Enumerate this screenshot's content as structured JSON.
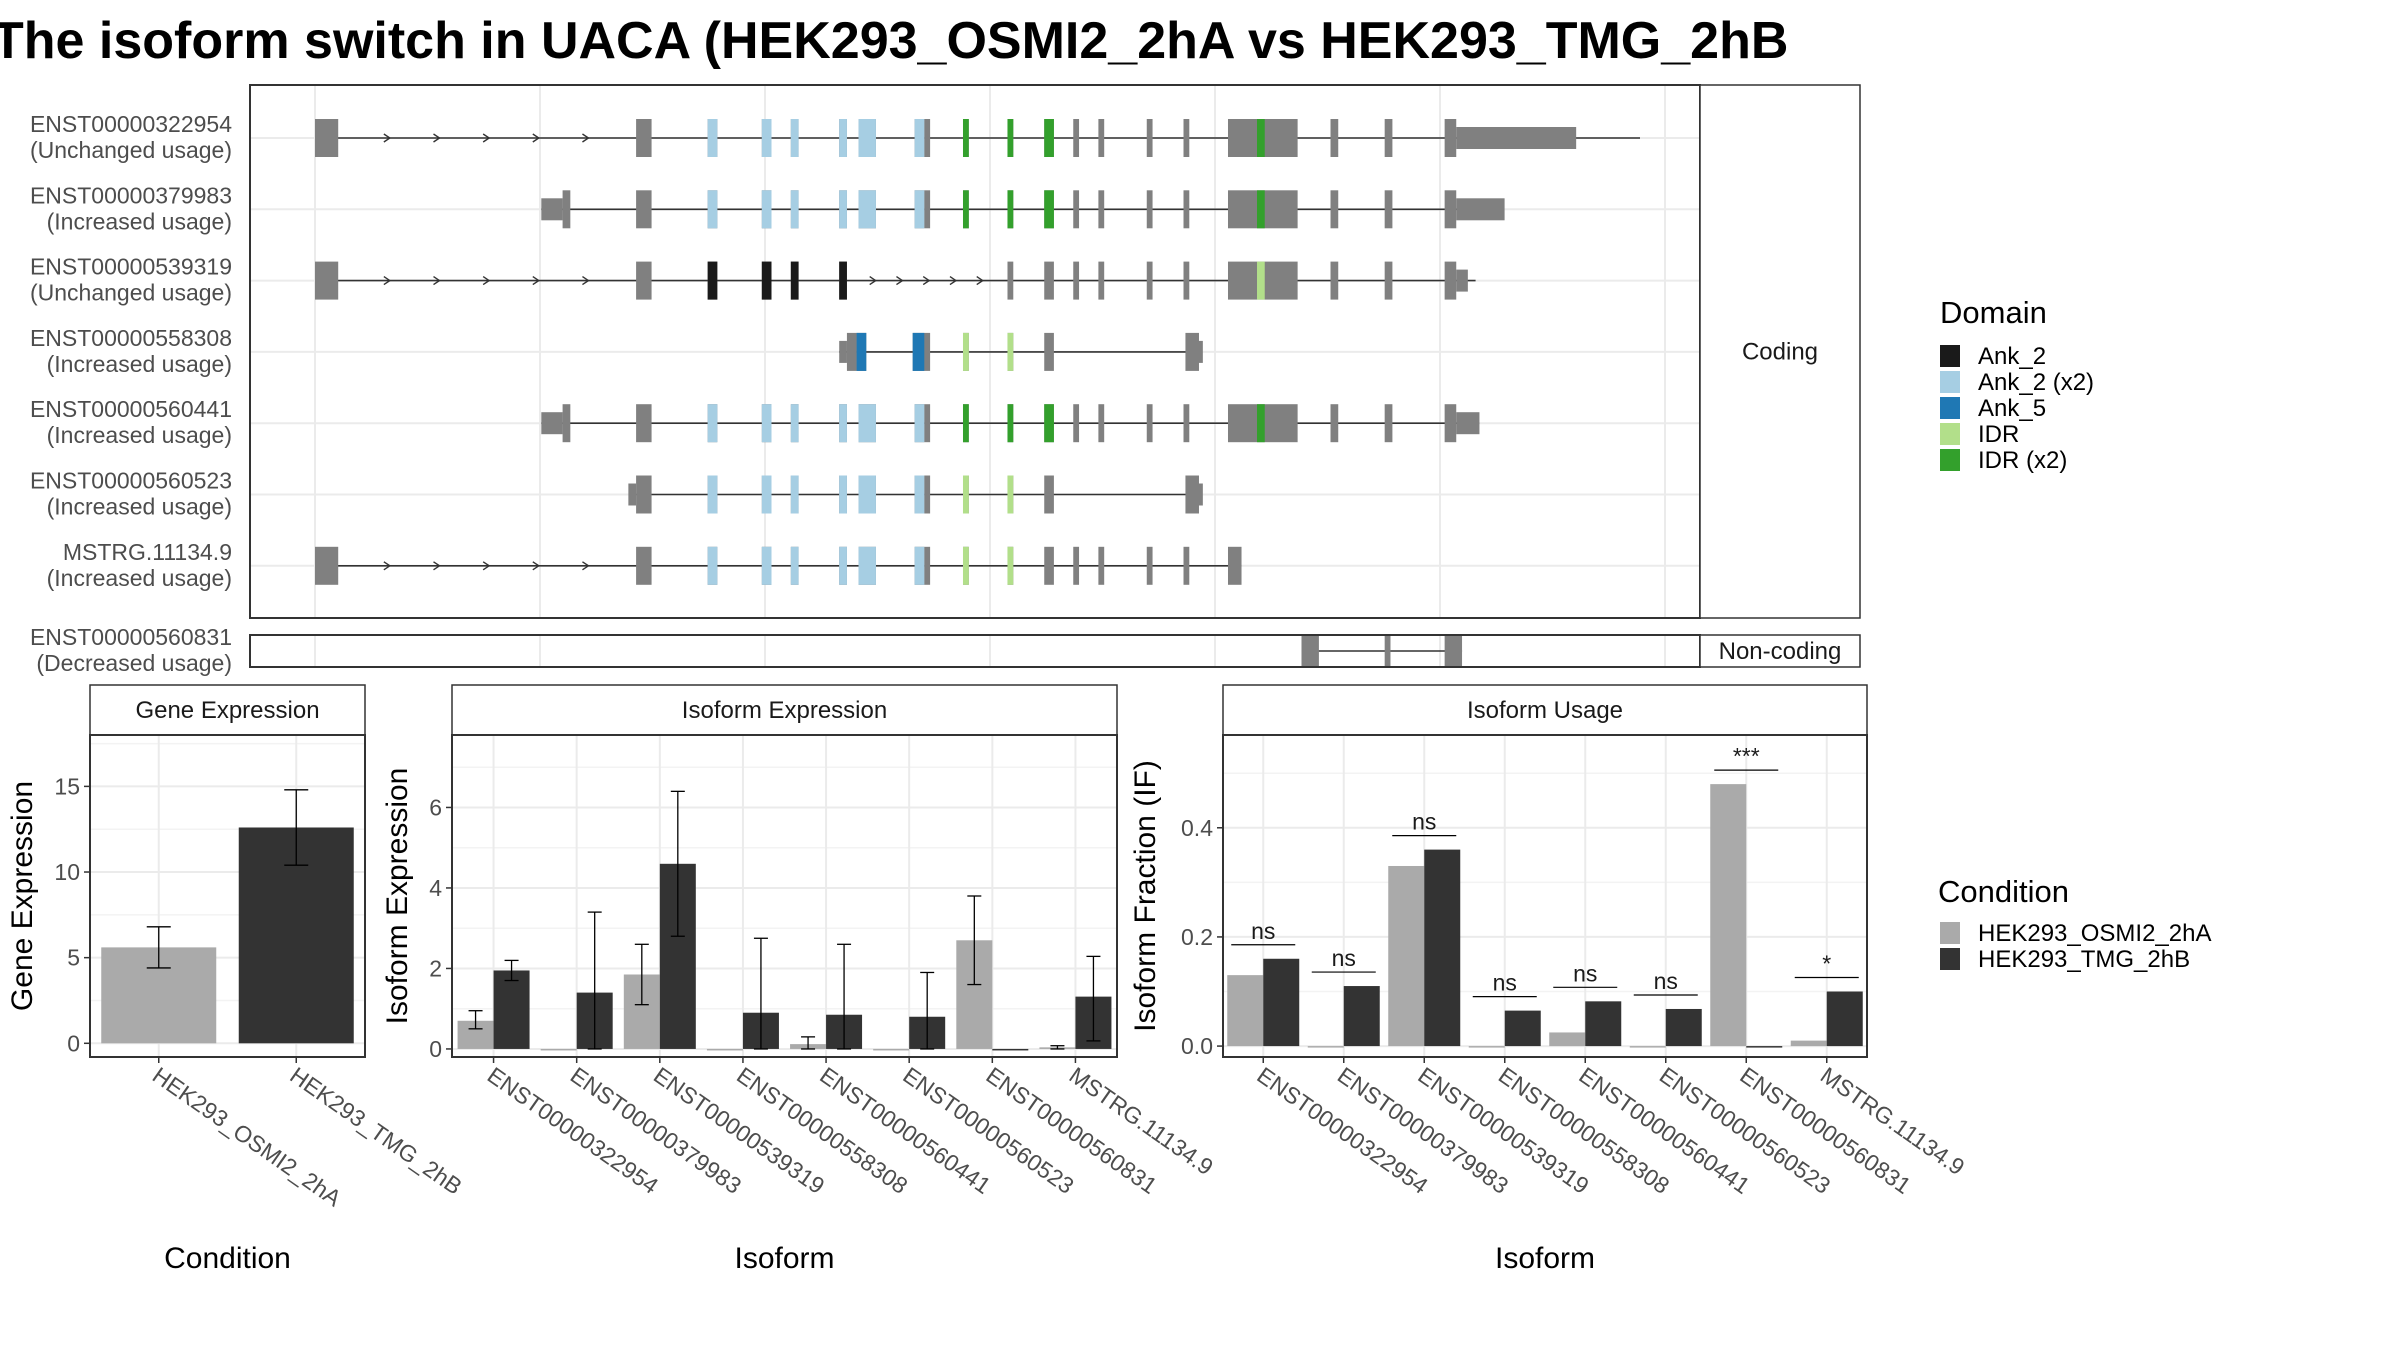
{
  "title": "The isoform switch in UACA (HEK293_OSMI2_2hA vs HEK293_TMG_2hB",
  "colors": {
    "exon": "#808080",
    "Ank_2": "#1a1a1a",
    "Ank_2 (x2)": "#a6cee3",
    "Ank_5": "#1f78b4",
    "IDR": "#b2df8a",
    "IDR (x2)": "#33a02c",
    "cond1": "#aaaaaa",
    "cond2": "#333333",
    "grid": "#ebebeb"
  },
  "structure": {
    "facets": {
      "coding": "Coding",
      "noncoding": "Non-coding"
    },
    "isoforms": [
      {
        "id": "ENST00000322954",
        "usage": "(Unchanged usage)",
        "group": "coding",
        "coding": true,
        "start": 0.5,
        "end": 68.5,
        "exons": [
          [
            0,
            1.2
          ],
          [
            16.6,
            17.4
          ],
          [
            20.3,
            20.8
          ],
          [
            23.1,
            23.6
          ],
          [
            24.6,
            25.0
          ],
          [
            27.1,
            27.5
          ],
          [
            28.1,
            29.0
          ],
          [
            31.0,
            31.8
          ],
          [
            33.5,
            33.8
          ],
          [
            35.8,
            36.1
          ],
          [
            37.7,
            38.2
          ],
          [
            39.2,
            39.5
          ],
          [
            40.5,
            40.8
          ],
          [
            43.0,
            43.3
          ],
          [
            44.9,
            45.2
          ],
          [
            47.2,
            50.8
          ],
          [
            52.5,
            52.9
          ],
          [
            55.3,
            55.7
          ],
          [
            58.4,
            68.5
          ]
        ],
        "utr": [
          [
            0,
            0.5
          ],
          [
            58.9,
            68.5
          ]
        ],
        "intronArrows": [
          [
            1.2,
            16.6
          ]
        ],
        "domains": [
          {
            "type": "Ank_2 (x2)",
            "exons": [
              2,
              3,
              4,
              5,
              6,
              7
            ]
          },
          {
            "type": "IDR (x2)",
            "exons": [
              8,
              9,
              10
            ]
          },
          {
            "type": "IDR (x2)",
            "span": [
              48.7,
              49.1
            ]
          }
        ]
      },
      {
        "id": "ENST00000379983",
        "usage": "(Increased usage)",
        "group": "coding",
        "coding": true,
        "start": 11.7,
        "end": 60.5
      },
      {
        "id": "ENST00000539319",
        "usage": "(Unchanged usage)",
        "group": "coding",
        "coding": true,
        "start": 0.5,
        "end": 60.0
      },
      {
        "id": "ENST00000558308",
        "usage": "(Increased usage)",
        "group": "coding",
        "coding": true,
        "start": 27.1,
        "end": 45.8
      },
      {
        "id": "ENST00000560441",
        "usage": "(Increased usage)",
        "group": "coding",
        "coding": true,
        "start": 11.7,
        "end": 60.2
      },
      {
        "id": "ENST00000560523",
        "usage": "(Increased usage)",
        "group": "coding",
        "coding": true,
        "start": 16.6,
        "end": 45.8
      },
      {
        "id": "MSTRG.11134.9",
        "usage": "(Increased usage)",
        "group": "coding",
        "coding": true,
        "start": 0.5,
        "end": 47.9
      },
      {
        "id": "ENST00000560831",
        "usage": "(Decreased usage)",
        "group": "noncoding",
        "coding": false,
        "start": 51.0,
        "end": 59.3
      }
    ]
  },
  "chart_data": [
    {
      "type": "bar",
      "title": "Gene Expression",
      "xlabel": "Condition",
      "ylabel": "Gene Expression",
      "categories": [
        "HEK293_OSMI2_2hA",
        "HEK293_TMG_2hB"
      ],
      "values": [
        5.6,
        12.6
      ],
      "error_low": [
        4.4,
        10.4
      ],
      "error_high": [
        6.8,
        14.8
      ],
      "yticks": [
        0,
        5,
        10,
        15
      ],
      "ylim": [
        -0.8,
        18
      ]
    },
    {
      "type": "bar",
      "title": "Isoform Expression",
      "xlabel": "Isoform",
      "ylabel": "Isoform Expression",
      "categories": [
        "ENST00000322954",
        "ENST00000379983",
        "ENST00000539319",
        "ENST00000558308",
        "ENST00000560441",
        "ENST00000560523",
        "ENST00000560831",
        "MSTRG.11134.9"
      ],
      "series": [
        {
          "name": "HEK293_OSMI2_2hA",
          "values": [
            0.7,
            0.0,
            1.85,
            0.0,
            0.12,
            0.0,
            2.7,
            0.04
          ],
          "error_low": [
            0.5,
            0,
            1.1,
            0,
            0.0,
            0,
            1.6,
            0.0
          ],
          "error_high": [
            0.95,
            0,
            2.6,
            0,
            0.3,
            0,
            3.8,
            0.08
          ]
        },
        {
          "name": "HEK293_TMG_2hB",
          "values": [
            1.95,
            1.4,
            4.6,
            0.9,
            0.85,
            0.8,
            0.0,
            1.3
          ],
          "error_low": [
            1.7,
            0.0,
            2.8,
            0.0,
            0.0,
            0.0,
            0,
            0.2
          ],
          "error_high": [
            2.2,
            3.4,
            6.4,
            2.75,
            2.6,
            1.9,
            0,
            2.3
          ]
        }
      ],
      "yticks": [
        0,
        2,
        4,
        6
      ],
      "ylim": [
        -0.2,
        7.8
      ]
    },
    {
      "type": "bar",
      "title": "Isoform Usage",
      "xlabel": "Isoform",
      "ylabel": "Isoform Fraction (IF)",
      "categories": [
        "ENST00000322954",
        "ENST00000379983",
        "ENST00000539319",
        "ENST00000558308",
        "ENST00000560441",
        "ENST00000560523",
        "ENST00000560831",
        "MSTRG.11134.9"
      ],
      "series": [
        {
          "name": "HEK293_OSMI2_2hA",
          "values": [
            0.13,
            0.0,
            0.33,
            0.0,
            0.025,
            0.0,
            0.48,
            0.01
          ]
        },
        {
          "name": "HEK293_TMG_2hB",
          "values": [
            0.16,
            0.11,
            0.36,
            0.065,
            0.082,
            0.068,
            0.0,
            0.1
          ]
        }
      ],
      "significance": [
        "ns",
        "ns",
        "ns",
        "ns",
        "ns",
        "ns",
        "***",
        "*"
      ],
      "yticks": [
        0.0,
        0.2,
        0.4
      ],
      "ytick_labels": [
        "0.0",
        "0.2",
        "0.4"
      ],
      "ylim": [
        -0.02,
        0.57
      ]
    }
  ],
  "legends": {
    "domain": {
      "title": "Domain",
      "items": [
        "Ank_2",
        "Ank_2 (x2)",
        "Ank_5",
        "IDR",
        "IDR (x2)"
      ]
    },
    "condition": {
      "title": "Condition",
      "items": [
        "HEK293_OSMI2_2hA",
        "HEK293_TMG_2hB"
      ]
    }
  }
}
